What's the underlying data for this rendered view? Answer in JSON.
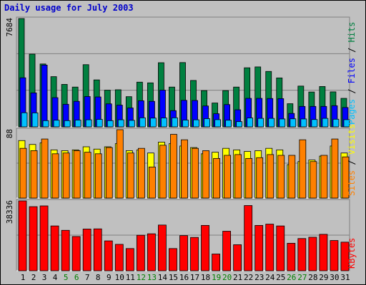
{
  "title": "Daily usage for July 2003",
  "colors": {
    "hits": "#008040",
    "files": "#0000ff",
    "pages": "#00c0ff",
    "visits": "#ffff00",
    "sites": "#ff8000",
    "kbytes": "#ff0000",
    "weekday": "#000000",
    "weekend": "#008000"
  },
  "chart_data": [
    {
      "type": "bar",
      "title": "Daily usage for July 2003",
      "categories": [
        "1",
        "2",
        "3",
        "4",
        "5",
        "6",
        "7",
        "8",
        "9",
        "10",
        "11",
        "12",
        "13",
        "14",
        "15",
        "16",
        "17",
        "18",
        "19",
        "20",
        "21",
        "22",
        "23",
        "24",
        "25",
        "26",
        "27",
        "28",
        "29",
        "30",
        "31"
      ],
      "weekend_days": [
        "5",
        "6",
        "12",
        "13",
        "19",
        "20",
        "26",
        "27"
      ],
      "ylim": [
        0,
        7684
      ],
      "ymax_label": "7684",
      "right_label": [
        "Pages",
        "Files",
        "Hits"
      ],
      "series": [
        {
          "name": "Hits",
          "values": [
            7684,
            5160,
            4460,
            3560,
            3010,
            2820,
            4410,
            3330,
            2600,
            2630,
            2140,
            3170,
            3120,
            4550,
            2820,
            4560,
            3290,
            2570,
            1690,
            2570,
            2820,
            4190,
            4250,
            3930,
            3470,
            1640,
            2890,
            2470,
            2860,
            2480,
            2020
          ]
        },
        {
          "name": "Files",
          "values": [
            3480,
            2410,
            4380,
            2070,
            1600,
            1810,
            2150,
            2120,
            1630,
            1540,
            1340,
            1850,
            1810,
            2600,
            1150,
            1880,
            1870,
            1480,
            930,
            1580,
            1210,
            2020,
            2020,
            2010,
            2000,
            950,
            1450,
            1450,
            1450,
            1500,
            1370
          ]
        },
        {
          "name": "Pages",
          "values": [
            1000,
            990,
            440,
            470,
            440,
            480,
            500,
            530,
            440,
            500,
            460,
            640,
            620,
            630,
            640,
            480,
            500,
            580,
            510,
            470,
            370,
            630,
            600,
            600,
            560,
            570,
            560,
            520,
            600,
            540,
            510
          ]
        }
      ]
    },
    {
      "type": "bar",
      "categories": [
        "1",
        "2",
        "3",
        "4",
        "5",
        "6",
        "7",
        "8",
        "9",
        "10",
        "11",
        "12",
        "13",
        "14",
        "15",
        "16",
        "17",
        "18",
        "19",
        "20",
        "21",
        "22",
        "23",
        "24",
        "25",
        "26",
        "27",
        "28",
        "29",
        "30",
        "31"
      ],
      "ylim": [
        0,
        88
      ],
      "ymax_label": "88",
      "right_label": [
        "Sites",
        "Visits"
      ],
      "series": [
        {
          "name": "Visits",
          "values": [
            74,
            69,
            71,
            62,
            61,
            62,
            66,
            63,
            66,
            70,
            61,
            62,
            58,
            72,
            70,
            67,
            65,
            57,
            59,
            64,
            62,
            60,
            61,
            64,
            62,
            43,
            47,
            49,
            54,
            67,
            58
          ]
        },
        {
          "name": "Sites",
          "values": [
            64,
            61,
            76,
            57,
            58,
            61,
            59,
            57,
            65,
            88,
            58,
            64,
            40,
            68,
            82,
            75,
            64,
            61,
            51,
            55,
            56,
            51,
            52,
            56,
            55,
            55,
            75,
            47,
            55,
            76,
            53
          ]
        }
      ]
    },
    {
      "type": "bar",
      "categories": [
        "1",
        "2",
        "3",
        "4",
        "5",
        "6",
        "7",
        "8",
        "9",
        "10",
        "11",
        "12",
        "13",
        "14",
        "15",
        "16",
        "17",
        "18",
        "19",
        "20",
        "21",
        "22",
        "23",
        "24",
        "25",
        "26",
        "27",
        "28",
        "29",
        "30",
        "31"
      ],
      "ylim": [
        0,
        38336
      ],
      "ymax_label": "38336",
      "right_label": [
        "KBytes"
      ],
      "series": [
        {
          "name": "KBytes",
          "values": [
            38336,
            35200,
            35600,
            24600,
            22200,
            18800,
            22900,
            23000,
            16400,
            14500,
            12200,
            19500,
            20300,
            25100,
            12200,
            19300,
            18300,
            24900,
            9200,
            21700,
            14300,
            35800,
            24900,
            25600,
            24600,
            15100,
            17700,
            18400,
            20000,
            16600,
            15700
          ]
        }
      ]
    }
  ]
}
